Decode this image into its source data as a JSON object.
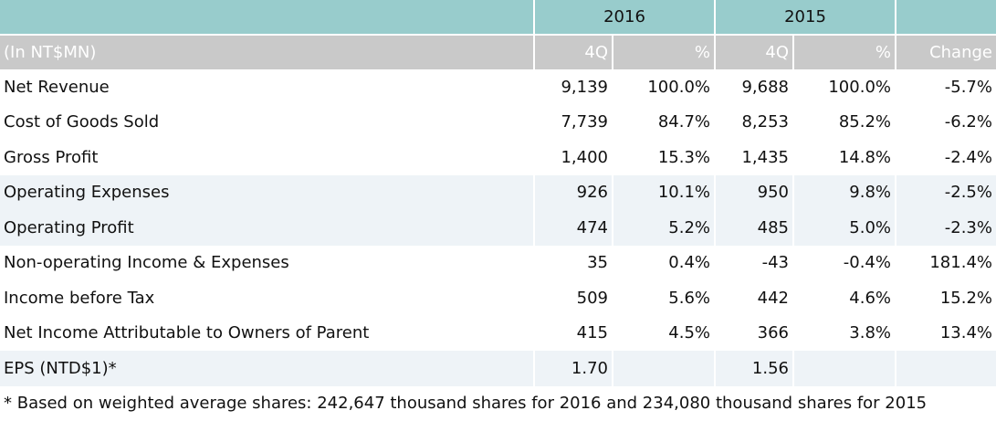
{
  "header": {
    "year_1": "2016",
    "year_2": "2015",
    "unit_label": "(In NT$MN)",
    "col_4q_1": "4Q",
    "col_pct_1": "%",
    "col_4q_2": "4Q",
    "col_pct_2": "%",
    "col_change": "Change"
  },
  "rows": [
    {
      "label": "Net Revenue",
      "v2016": "9,139",
      "p2016": "100.0%",
      "v2015": "9,688",
      "p2015": "100.0%",
      "change": "-5.7%"
    },
    {
      "label": "Cost of Goods Sold",
      "v2016": "7,739",
      "p2016": "84.7%",
      "v2015": "8,253",
      "p2015": "85.2%",
      "change": "-6.2%"
    },
    {
      "label": "Gross Profit",
      "v2016": "1,400",
      "p2016": "15.3%",
      "v2015": "1,435",
      "p2015": "14.8%",
      "change": "-2.4%"
    },
    {
      "label": "Operating Expenses",
      "v2016": "926",
      "p2016": "10.1%",
      "v2015": "950",
      "p2015": "9.8%",
      "change": "-2.5%"
    },
    {
      "label": "Operating Profit",
      "v2016": "474",
      "p2016": "5.2%",
      "v2015": "485",
      "p2015": "5.0%",
      "change": "-2.3%"
    },
    {
      "label": "Non-operating Income & Expenses",
      "v2016": "35",
      "p2016": "0.4%",
      "v2015": "-43",
      "p2015": "-0.4%",
      "change": "181.4%"
    },
    {
      "label": "Income before Tax",
      "v2016": "509",
      "p2016": "5.6%",
      "v2015": "442",
      "p2015": "4.6%",
      "change": "15.2%"
    },
    {
      "label": "Net Income Attributable to Owners of Parent",
      "v2016": "415",
      "p2016": "4.5%",
      "v2015": "366",
      "p2015": "3.8%",
      "change": "13.4%"
    },
    {
      "label": "EPS (NTD$1)*",
      "v2016": "1.70",
      "p2016": "",
      "v2015": "1.56",
      "p2015": "",
      "change": ""
    }
  ],
  "footnote": "* Based on weighted average shares: 242,647 thousand shares for 2016 and 234,080 thousand shares for 2015",
  "colors": {
    "year_header_bg": "#98cccc",
    "sub_header_bg": "#c9c9c9",
    "shaded_row_bg": "#eef3f7"
  }
}
